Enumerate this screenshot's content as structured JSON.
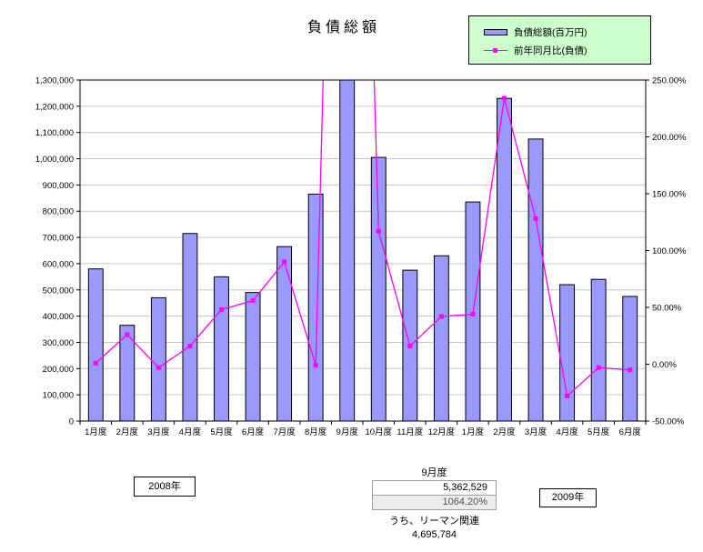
{
  "title": "負債総額",
  "legend": {
    "items": [
      {
        "label": "負債総額(百万円)",
        "type": "bar"
      },
      {
        "label": "前年同月比(負債)",
        "type": "line"
      }
    ]
  },
  "colors": {
    "bar": "#9999ff",
    "bar_border": "#000000",
    "line": "#ff00ff",
    "legend_bg": "#ccffcc",
    "grid": "#c6c6c6"
  },
  "chart_data": {
    "type": "bar+line",
    "title": "負債総額",
    "categories": [
      "1月度",
      "2月度",
      "3月度",
      "4月度",
      "5月度",
      "6月度",
      "7月度",
      "8月度",
      "9月度",
      "10月度",
      "11月度",
      "12月度",
      "1月度",
      "2月度",
      "3月度",
      "4月度",
      "5月度",
      "6月度"
    ],
    "series": [
      {
        "name": "負債総額(百万円)",
        "type": "bar",
        "axis": "left",
        "values": [
          580000,
          365000,
          470000,
          715000,
          550000,
          490000,
          665000,
          865000,
          5362529,
          1005000,
          575000,
          630000,
          835000,
          1230000,
          1075000,
          520000,
          540000,
          475000
        ]
      },
      {
        "name": "前年同月比(負債)",
        "type": "line",
        "axis": "right",
        "unit": "%",
        "values": [
          1,
          26,
          -3,
          16,
          48,
          56,
          90,
          -1,
          1064.2,
          117,
          16,
          42,
          44,
          234,
          128,
          -28,
          -3,
          -5
        ]
      }
    ],
    "left_axis": {
      "min": 0,
      "max": 1300000,
      "step": 100000,
      "tick_labels": [
        "0",
        "100,000",
        "200,000",
        "300,000",
        "400,000",
        "500,000",
        "600,000",
        "700,000",
        "800,000",
        "900,000",
        "1,000,000",
        "1,100,000",
        "1,200,000",
        "1,300,000"
      ]
    },
    "right_axis": {
      "min": -50,
      "max": 250,
      "step": 50,
      "tick_labels": [
        "-50.00%",
        "0.00%",
        "50.00%",
        "100.00%",
        "150.00%",
        "200.00%",
        "250.00%"
      ]
    },
    "grid": true,
    "legend_position": "top-right",
    "note": "9月度 bar (5,362,529) and line point (1064.20%) exceed axis maxima and are clipped at plot top"
  },
  "annotations": {
    "year_2008": "2008年",
    "year_2009": "2009年",
    "callout_month": "9月度",
    "callout_value": "5,362,529",
    "callout_pct": "1064.20%",
    "lehman_label": "うち、リーマン関連",
    "lehman_value": "4,695,784"
  }
}
